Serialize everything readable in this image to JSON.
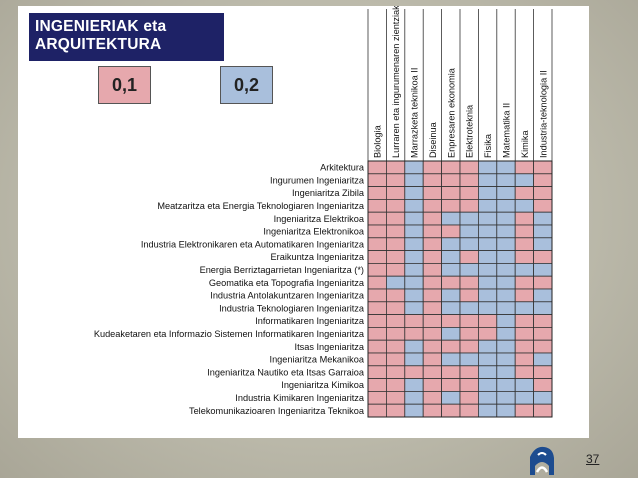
{
  "title_line1": "INGENIERIAK eta",
  "title_line2": "ARQUITEKTURA",
  "legend": {
    "red_label": "0,1",
    "blue_label": "0,2"
  },
  "colors": {
    "red": "#e6a8ad",
    "blue": "#a9bfdc",
    "title_bg": "#1e2266"
  },
  "columns": [
    "Biologia",
    "Lurraren eta ingurumenaren zientziak",
    "Marrazketa teknikoa II",
    "Diseinua",
    "Enpresaren ekonomia",
    "Elektroteknia",
    "Fisika",
    "Matematika II",
    "Kimika",
    "Industria-teknologia II"
  ],
  "rows": [
    {
      "name": "Arkitektura",
      "cells": [
        "r",
        "r",
        "b",
        "r",
        "r",
        "r",
        "b",
        "b",
        "r",
        "r"
      ]
    },
    {
      "name": "Ingurumen Ingeniaritza",
      "cells": [
        "r",
        "r",
        "b",
        "r",
        "r",
        "r",
        "b",
        "b",
        "b",
        "r"
      ]
    },
    {
      "name": "Ingeniaritza Zibila",
      "cells": [
        "r",
        "r",
        "b",
        "r",
        "r",
        "r",
        "b",
        "b",
        "r",
        "r"
      ]
    },
    {
      "name": "Meatzaritza eta Energia Teknologiaren Ingeniaritza",
      "cells": [
        "r",
        "r",
        "b",
        "r",
        "r",
        "r",
        "b",
        "b",
        "b",
        "r"
      ]
    },
    {
      "name": "Ingeniaritza Elektrikoa",
      "cells": [
        "r",
        "r",
        "b",
        "r",
        "b",
        "b",
        "b",
        "b",
        "r",
        "b"
      ]
    },
    {
      "name": "Ingeniaritza Elektronikoa",
      "cells": [
        "r",
        "r",
        "b",
        "r",
        "r",
        "b",
        "b",
        "b",
        "r",
        "b"
      ]
    },
    {
      "name": "Industria Elektronikaren eta Automatikaren Ingeniaritza",
      "cells": [
        "r",
        "r",
        "b",
        "r",
        "b",
        "b",
        "b",
        "b",
        "r",
        "b"
      ]
    },
    {
      "name": "Eraikuntza Ingeniaritza",
      "cells": [
        "r",
        "r",
        "b",
        "r",
        "b",
        "r",
        "b",
        "b",
        "r",
        "r"
      ]
    },
    {
      "name": "Energia Berriztagarrietan Ingeniaritza (*)",
      "cells": [
        "r",
        "r",
        "b",
        "r",
        "b",
        "b",
        "b",
        "b",
        "b",
        "b"
      ]
    },
    {
      "name": "Geomatika eta Topografia Ingeniaritza",
      "cells": [
        "r",
        "b",
        "b",
        "r",
        "r",
        "r",
        "b",
        "b",
        "r",
        "r"
      ]
    },
    {
      "name": "Industria Antolakuntzaren Ingeniaritza",
      "cells": [
        "r",
        "r",
        "b",
        "r",
        "b",
        "r",
        "b",
        "b",
        "r",
        "b"
      ]
    },
    {
      "name": "Industria Teknologiaren Ingeniaritza",
      "cells": [
        "r",
        "r",
        "b",
        "r",
        "b",
        "b",
        "b",
        "b",
        "b",
        "b"
      ]
    },
    {
      "name": "Informatikaren Ingeniaritza",
      "cells": [
        "r",
        "r",
        "r",
        "r",
        "r",
        "r",
        "r",
        "b",
        "r",
        "r"
      ]
    },
    {
      "name": "Kudeaketaren eta Informazio Sistemen Informatikaren Ingeniaritza",
      "cells": [
        "r",
        "r",
        "r",
        "r",
        "b",
        "r",
        "r",
        "b",
        "r",
        "r"
      ]
    },
    {
      "name": "Itsas Ingeniaritza",
      "cells": [
        "r",
        "r",
        "b",
        "r",
        "r",
        "r",
        "b",
        "b",
        "r",
        "r"
      ]
    },
    {
      "name": "Ingeniaritza Mekanikoa",
      "cells": [
        "r",
        "r",
        "b",
        "r",
        "b",
        "b",
        "b",
        "b",
        "r",
        "b"
      ]
    },
    {
      "name": "Ingeniaritza Nautiko eta Itsas Garraioa",
      "cells": [
        "r",
        "r",
        "r",
        "r",
        "r",
        "r",
        "b",
        "b",
        "r",
        "r"
      ]
    },
    {
      "name": "Ingeniaritza Kimikoa",
      "cells": [
        "r",
        "r",
        "b",
        "r",
        "r",
        "r",
        "b",
        "b",
        "b",
        "r"
      ]
    },
    {
      "name": "Industria Kimikaren Ingeniaritza",
      "cells": [
        "r",
        "r",
        "b",
        "r",
        "b",
        "r",
        "b",
        "b",
        "b",
        "b"
      ]
    },
    {
      "name": "Telekomunikazioaren Ingeniaritza Teknikoa",
      "cells": [
        "r",
        "r",
        "b",
        "r",
        "r",
        "r",
        "b",
        "b",
        "r",
        "r"
      ]
    }
  ],
  "page_number": "37",
  "logo_icon": "eusko-jaurlaritza-logo-icon"
}
